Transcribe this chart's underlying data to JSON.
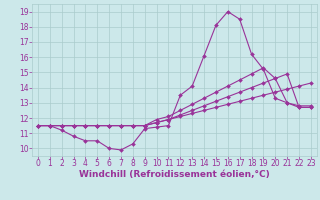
{
  "background_color": "#cce8ea",
  "grid_color": "#aacccc",
  "line_color": "#993399",
  "marker": "D",
  "marker_size": 2.0,
  "line_width": 0.8,
  "xlabel": "Windchill (Refroidissement éolien,°C)",
  "xlabel_fontsize": 6.5,
  "tick_fontsize": 5.5,
  "ylim": [
    9.5,
    19.5
  ],
  "xlim": [
    -0.5,
    23.5
  ],
  "yticks": [
    10,
    11,
    12,
    13,
    14,
    15,
    16,
    17,
    18,
    19
  ],
  "xticks": [
    0,
    1,
    2,
    3,
    4,
    5,
    6,
    7,
    8,
    9,
    10,
    11,
    12,
    13,
    14,
    15,
    16,
    17,
    18,
    19,
    20,
    21,
    22,
    23
  ],
  "series": [
    [
      11.5,
      11.5,
      11.2,
      10.8,
      10.5,
      10.5,
      10.0,
      9.9,
      10.3,
      11.3,
      11.4,
      11.5,
      13.5,
      14.1,
      16.1,
      18.1,
      19.0,
      18.5,
      16.2,
      15.2,
      13.3,
      13.0,
      12.8,
      12.8
    ],
    [
      11.5,
      11.5,
      11.5,
      11.5,
      11.5,
      11.5,
      11.5,
      11.5,
      11.5,
      11.5,
      11.7,
      11.9,
      12.1,
      12.3,
      12.5,
      12.7,
      12.9,
      13.1,
      13.3,
      13.5,
      13.7,
      13.9,
      14.1,
      14.3
    ],
    [
      11.5,
      11.5,
      11.5,
      11.5,
      11.5,
      11.5,
      11.5,
      11.5,
      11.5,
      11.5,
      11.9,
      12.1,
      12.5,
      12.9,
      13.3,
      13.7,
      14.1,
      14.5,
      14.9,
      15.3,
      14.6,
      13.0,
      12.7,
      12.7
    ],
    [
      11.5,
      11.5,
      11.5,
      11.5,
      11.5,
      11.5,
      11.5,
      11.5,
      11.5,
      11.5,
      11.7,
      11.9,
      12.2,
      12.5,
      12.8,
      13.1,
      13.4,
      13.7,
      14.0,
      14.3,
      14.6,
      14.9,
      12.7,
      12.7
    ]
  ],
  "figsize": [
    3.2,
    2.0
  ],
  "dpi": 100
}
